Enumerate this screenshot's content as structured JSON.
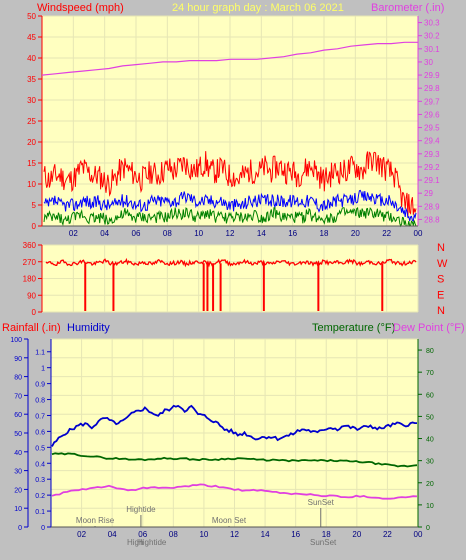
{
  "header": {
    "windspeed_label": "Windspeed (mph)",
    "title": "24 hour graph day : March 06 2021",
    "barometer_label": "Barometer (.in)"
  },
  "colors": {
    "background": "#c0c0c0",
    "plot_bg": "#ffffc0",
    "grid": "#e6e6b4",
    "wind_gust": "#ff0000",
    "wind_avg": "#0000ff",
    "wind_low": "#008000",
    "barometer": "#e040e0",
    "direction": "#ff0000",
    "humidity": "#0000cc",
    "temperature": "#006600",
    "dew_point": "#e040e0",
    "rain_axis": "#0000cc",
    "astro": "#707070"
  },
  "chart_data": [
    {
      "type": "line",
      "title": "24 hour graph day : March 06 2021",
      "ylabel": "Windspeed (mph)",
      "y2label": "Barometer (.in)",
      "x_ticks": [
        "02",
        "04",
        "06",
        "08",
        "10",
        "12",
        "14",
        "16",
        "18",
        "20",
        "22",
        "00"
      ],
      "ylim": [
        0,
        50
      ],
      "y_ticks": [
        0,
        5,
        10,
        15,
        20,
        25,
        30,
        35,
        40,
        45,
        50
      ],
      "y2lim": [
        28.75,
        30.35
      ],
      "y2_ticks": [
        "28.8",
        "28.9",
        "29",
        "29.1",
        "29.2",
        "29.3",
        "29.4",
        "29.5",
        "29.6",
        "29.7",
        "29.8",
        "29.9",
        "30",
        "30.1",
        "30.2",
        "30.3"
      ],
      "series": [
        {
          "role": "gust",
          "color": "#ff0000",
          "values": [
            12,
            11,
            12,
            12,
            11,
            11,
            12,
            14,
            13,
            12,
            12,
            11,
            10,
            11,
            13,
            14,
            13,
            12,
            11,
            12,
            13,
            12,
            13,
            14,
            13,
            14,
            15,
            14,
            13,
            14,
            15,
            13,
            13,
            14,
            12,
            12,
            11,
            12,
            13,
            13,
            13,
            14,
            13,
            14,
            14,
            13,
            13,
            12,
            13,
            14,
            14,
            12,
            11,
            12,
            13,
            13,
            13,
            14,
            14,
            13,
            15,
            16,
            15,
            14,
            13,
            12,
            8,
            5,
            5,
            4
          ]
        },
        {
          "role": "average",
          "color": "#0000ff",
          "values": [
            5,
            5,
            6,
            5,
            5,
            5,
            5,
            6,
            6,
            5,
            6,
            5,
            5,
            5,
            6,
            6,
            6,
            5,
            5,
            5,
            6,
            6,
            6,
            6,
            6,
            6,
            7,
            7,
            6,
            6,
            6,
            6,
            6,
            6,
            5,
            5,
            5,
            5,
            6,
            6,
            6,
            6,
            6,
            6,
            6,
            6,
            6,
            6,
            6,
            6,
            6,
            5,
            5,
            5,
            6,
            6,
            6,
            6,
            7,
            7,
            7,
            7,
            6,
            6,
            6,
            5,
            4,
            3,
            2,
            2
          ]
        },
        {
          "role": "low",
          "color": "#008000",
          "values": [
            2,
            2,
            2,
            2,
            1,
            2,
            2,
            3,
            2,
            2,
            2,
            2,
            1,
            2,
            2,
            3,
            2,
            2,
            2,
            2,
            2,
            2,
            2,
            2,
            3,
            3,
            3,
            3,
            2,
            2,
            3,
            3,
            2,
            2,
            2,
            2,
            2,
            2,
            2,
            3,
            2,
            2,
            3,
            3,
            2,
            2,
            2,
            2,
            2,
            3,
            2,
            2,
            2,
            2,
            2,
            3,
            3,
            3,
            3,
            3,
            3,
            3,
            3,
            2,
            2,
            2,
            1,
            1,
            0,
            0
          ]
        },
        {
          "role": "barometer",
          "color": "#e040e0",
          "axis": "right",
          "values": [
            29.9,
            29.91,
            29.92,
            29.93,
            29.94,
            29.95,
            29.97,
            29.98,
            29.99,
            30.0,
            30.0,
            30.01,
            30.01,
            30.01,
            30.02,
            30.02,
            30.02,
            30.03,
            30.04,
            30.06,
            30.07,
            30.09,
            30.1,
            30.12,
            30.13,
            30.14,
            30.14,
            30.15,
            30.15
          ]
        }
      ]
    },
    {
      "type": "line",
      "y_ticks": [
        "360",
        "270",
        "180",
        "90",
        "0"
      ],
      "ylim": [
        0,
        360
      ],
      "right_labels": [
        "N",
        "W",
        "S",
        "E",
        "N"
      ],
      "series": [
        {
          "role": "wind_direction",
          "color": "#ff0000",
          "values": [
            260,
            265,
            255,
            270,
            262,
            258,
            266,
            272,
            263,
            257,
            268,
            274,
            261,
            259,
            267,
            271,
            264,
            256,
            269,
            262,
            258,
            273,
            266,
            260,
            263,
            270,
            257,
            265,
            268,
            272,
            261,
            259,
            270,
            276,
            263,
            258,
            266,
            271,
            264,
            260,
            268,
            262,
            257,
            269,
            273,
            265,
            259,
            262,
            270,
            266,
            258,
            264,
            272,
            261,
            267,
            263,
            269,
            275,
            262,
            258,
            271,
            266,
            260,
            264,
            278,
            268,
            258,
            262,
            270,
            268
          ],
          "dropouts": [
            0.115,
            0.19,
            0.43,
            0.44,
            0.455,
            0.475,
            0.59,
            0.735,
            0.905
          ]
        }
      ]
    },
    {
      "type": "line",
      "ylabel": "Rainfall (.in)",
      "ylabel2": "Humidity",
      "y2label": "Temperature (°F)",
      "y2label2": "Dew Point (°F)",
      "humidity_ticks": [
        0,
        10,
        20,
        30,
        40,
        50,
        60,
        70,
        80,
        90,
        100
      ],
      "rain_ticks": [
        "0",
        "0.1",
        "0.2",
        "0.3",
        "0.4",
        "0.5",
        "0.6",
        "0.7",
        "0.8",
        "0.9",
        "1",
        "1.1"
      ],
      "temp_ticks": [
        0,
        10,
        20,
        30,
        40,
        50,
        60,
        70,
        80
      ],
      "temp_lim": [
        0,
        85
      ],
      "humidity_lim": [
        0,
        100
      ],
      "x_ticks": [
        "02",
        "04",
        "06",
        "08",
        "10",
        "12",
        "14",
        "16",
        "18",
        "20",
        "22",
        "00"
      ],
      "series": [
        {
          "role": "humidity",
          "color": "#0000cc",
          "axis": "humidity",
          "values": [
            43,
            47,
            50,
            52,
            54,
            55,
            53,
            56,
            58,
            56,
            55,
            57,
            60,
            62,
            63,
            61,
            59,
            62,
            63,
            65,
            62,
            64,
            60,
            59,
            57,
            55,
            52,
            51,
            49,
            50,
            48,
            47,
            48,
            48,
            47,
            48,
            49,
            51,
            52,
            51,
            50,
            52,
            53,
            52,
            54,
            53,
            52,
            53,
            54,
            52,
            53,
            54,
            55,
            54,
            55,
            55
          ]
        },
        {
          "role": "temperature",
          "color": "#006600",
          "axis": "temp",
          "values": [
            33,
            33,
            33,
            32.5,
            32,
            31.5,
            31,
            31,
            30.5,
            30.5,
            30.5,
            31,
            31,
            31,
            30.8,
            30.5,
            30.5,
            30.5,
            30.8,
            31,
            31,
            30.5,
            30.3,
            30.3,
            30,
            30,
            30,
            30.1,
            30,
            30,
            30,
            29.6,
            29.5,
            29.2,
            28.5,
            28,
            27.5,
            27.5,
            28
          ]
        },
        {
          "role": "dew_point",
          "color": "#e040e0",
          "axis": "temp",
          "values": [
            14,
            15.5,
            16.5,
            17,
            18,
            18.5,
            17,
            16.5,
            17.5,
            18,
            17.5,
            18,
            18.5,
            19,
            18.5,
            18,
            17,
            16.5,
            16.5,
            16,
            15.5,
            15,
            15,
            14.5,
            14,
            14,
            13.5,
            14,
            13.5,
            13,
            13,
            13.5,
            14
          ]
        }
      ],
      "annotations": {
        "moon_rise": {
          "label": "Moon Rise",
          "x": 0.12
        },
        "high_tide": {
          "label": "Hightide",
          "x": 0.245
        },
        "moon_set": {
          "label": "Moon Set",
          "x": 0.485
        },
        "sunset": {
          "label": "SunSet",
          "x": 0.735
        },
        "bottom_high_tide": "Hightide",
        "bottom_high_tide_prefix": "High",
        "bottom_sunset": "SunSet"
      }
    }
  ]
}
